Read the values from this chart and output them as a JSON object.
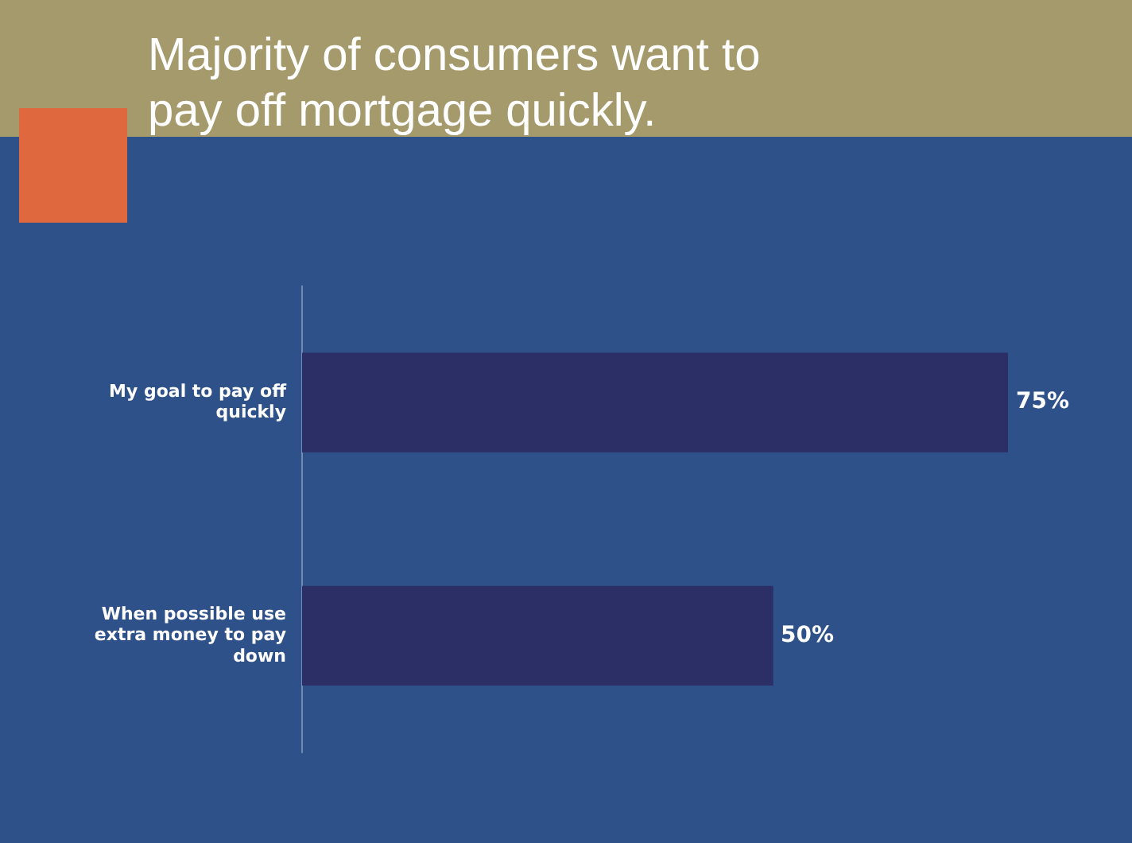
{
  "chart_data": {
    "type": "bar",
    "orientation": "horizontal",
    "title": "Majority of consumers want to pay off mortgage quickly.",
    "categories": [
      "My goal to pay off quickly",
      "When possible use extra money to pay down"
    ],
    "values": [
      75,
      50
    ],
    "value_labels": [
      "75%",
      "50%"
    ],
    "color": "#2b2f66",
    "tick_labels": "y",
    "grid": false,
    "legend": false
  }
}
